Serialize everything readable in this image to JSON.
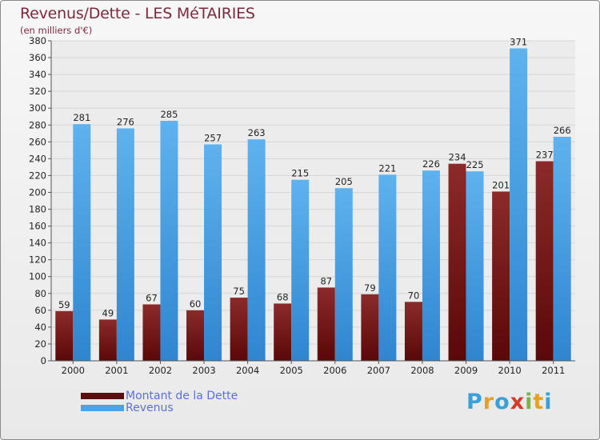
{
  "header": {
    "title": "Revenus/Dette - LES MéTAIRIES",
    "subtitle": "(en milliers d'€)"
  },
  "chart_data": {
    "type": "bar",
    "categories": [
      "2000",
      "2001",
      "2002",
      "2003",
      "2004",
      "2005",
      "2006",
      "2007",
      "2008",
      "2009",
      "2010",
      "2011"
    ],
    "series": [
      {
        "name": "Montant de la Dette",
        "color": "#7a1a1a",
        "values": [
          59,
          49,
          67,
          60,
          75,
          68,
          87,
          79,
          70,
          234,
          201,
          237
        ]
      },
      {
        "name": "Revenus",
        "color": "#4aa3e6",
        "values": [
          281,
          276,
          285,
          257,
          263,
          215,
          205,
          221,
          226,
          225,
          371,
          266
        ]
      }
    ],
    "ylim": [
      0,
      380
    ],
    "yticks": [
      0,
      20,
      40,
      60,
      80,
      100,
      120,
      140,
      160,
      180,
      200,
      220,
      240,
      260,
      280,
      300,
      320,
      340,
      360,
      380
    ],
    "grid": true,
    "legend_position": "bottom-left"
  },
  "legend": {
    "items": [
      {
        "label": "Montant de la Dette",
        "color": "#5a0f0f"
      },
      {
        "label": "Revenus",
        "color": "#4aa3e6"
      }
    ]
  },
  "brand": {
    "letters": [
      "P",
      "r",
      "o",
      "x",
      "i",
      "t",
      "i"
    ],
    "colors": [
      "#3aa0d8",
      "#e8a020",
      "#3aa0d8",
      "#d33b2a",
      "#7cb342",
      "#e8a020",
      "#3aa0d8"
    ]
  }
}
